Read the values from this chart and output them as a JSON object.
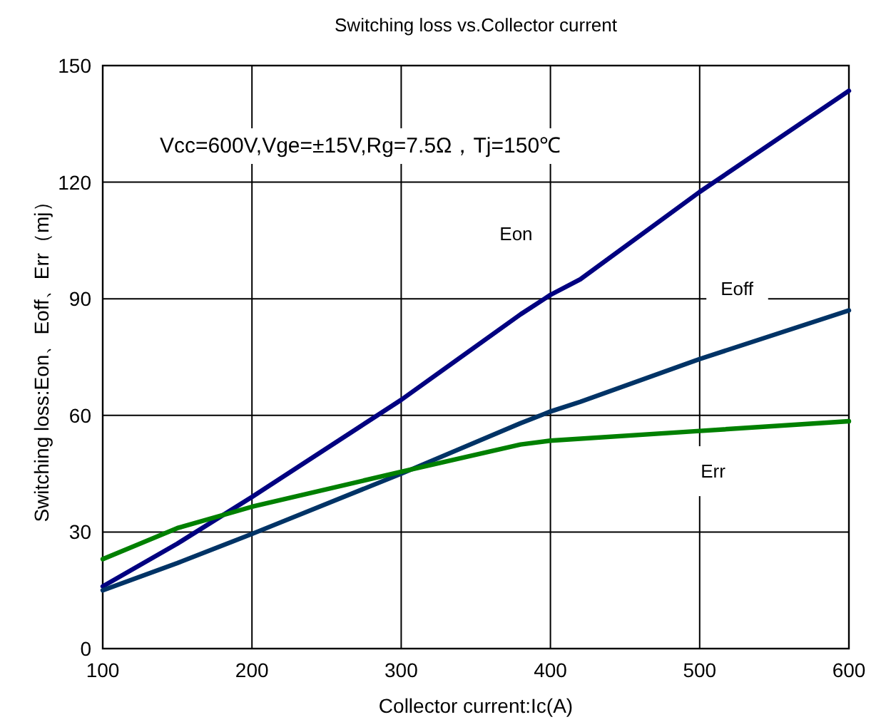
{
  "chart_data": {
    "type": "line",
    "title": "Switching loss vs.Collector current",
    "xlabel": "Collector current:Ic(A)",
    "ylabel": "Switching loss:Eon、Eoff、Err（mj）",
    "annotations": [
      "Vcc=600V,Vge=±15V,Rg=7.5Ω，Tj=150℃"
    ],
    "xlim": [
      100,
      600
    ],
    "ylim": [
      0,
      150
    ],
    "xticks": [
      100,
      200,
      300,
      400,
      500,
      600
    ],
    "yticks": [
      0,
      30,
      60,
      90,
      120,
      150
    ],
    "grid": true,
    "legend": false,
    "marker": "none",
    "line_style": "solid",
    "series": [
      {
        "name": "Eon",
        "color": "#000080",
        "x": [
          100,
          150,
          200,
          300,
          380,
          400,
          420,
          500,
          600
        ],
        "values": [
          16,
          27,
          39,
          64,
          86,
          91,
          95,
          117.5,
          143.5
        ]
      },
      {
        "name": "Eoff",
        "color": "#003366",
        "x": [
          100,
          150,
          200,
          300,
          380,
          400,
          420,
          500,
          600
        ],
        "values": [
          15,
          22,
          29.5,
          45,
          58,
          61,
          63.5,
          74.5,
          87
        ]
      },
      {
        "name": "Err",
        "color": "#008000",
        "x": [
          100,
          150,
          200,
          300,
          380,
          400,
          500,
          600
        ],
        "values": [
          23,
          31,
          36.5,
          45.5,
          52.5,
          53.5,
          56,
          58.5
        ]
      }
    ]
  }
}
